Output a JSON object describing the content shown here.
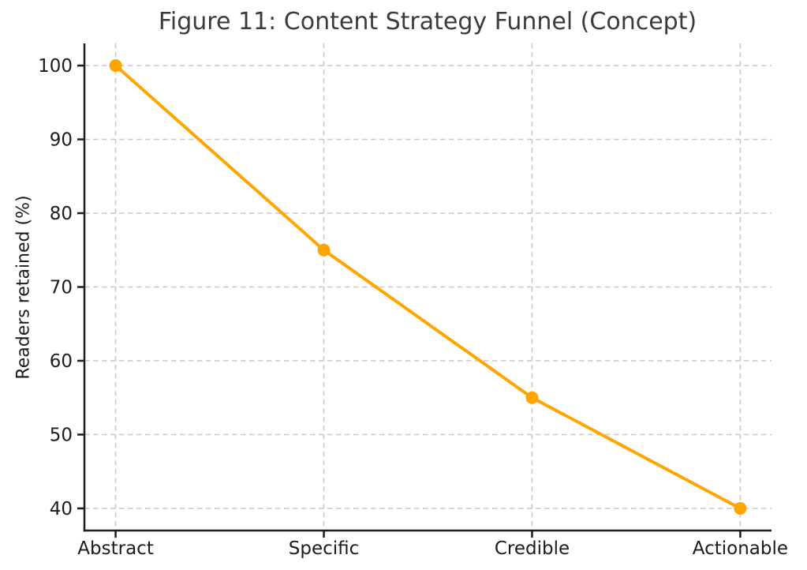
{
  "figure": {
    "title": "Figure 11: Content Strategy Funnel (Concept)"
  },
  "chart_data": {
    "type": "line",
    "title": "Figure 11: Content Strategy Funnel (Concept)",
    "xlabel": "",
    "ylabel": "Readers retained (%)",
    "categories": [
      "Abstract",
      "Specific",
      "Credible",
      "Actionable"
    ],
    "series": [
      {
        "name": "Readers retained (%)",
        "values": [
          100,
          75,
          55,
          40
        ],
        "color": "#FFA500",
        "marker": "circle"
      }
    ],
    "yticks": [
      40,
      50,
      60,
      70,
      80,
      90,
      100
    ],
    "ylim": [
      37,
      103
    ],
    "xlim": [
      -0.15,
      3.15
    ],
    "grid": true,
    "grid_style": "dashed",
    "legend_position": "none",
    "colors": {
      "line": "#FFA500",
      "grid": "#cbcbcb",
      "spine": "#1c1c1c",
      "tick_label": "#1c1c1c",
      "title": "#3b3b3b",
      "background": "#ffffff"
    }
  }
}
